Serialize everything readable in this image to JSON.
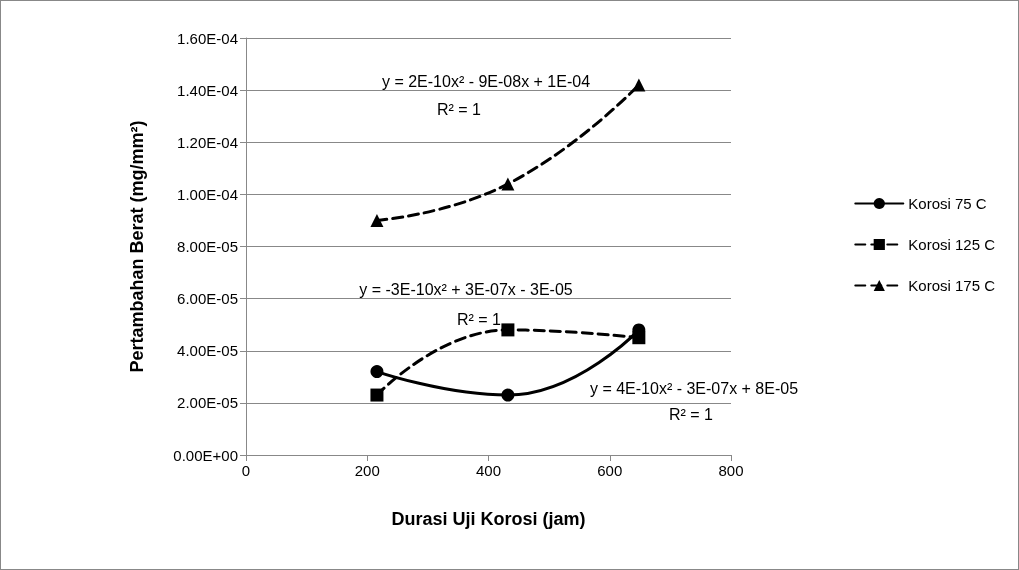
{
  "chart_data": {
    "type": "line",
    "xlabel": "Durasi Uji Korosi (jam)",
    "ylabel": "Pertambahan Berat (mg/mm²)",
    "x": [
      216,
      432,
      648
    ],
    "series": [
      {
        "name": "Korosi 75 C",
        "color": "#000000",
        "marker": "circle",
        "line_style": "solid",
        "values": [
          3.2e-05,
          2.3e-05,
          4.8e-05
        ]
      },
      {
        "name": "Korosi 125 C",
        "color": "#000000",
        "marker": "square",
        "line_style": "dashed",
        "values": [
          2.3e-05,
          4.8e-05,
          4.5e-05
        ]
      },
      {
        "name": "Korosi 175 C",
        "color": "#000000",
        "marker": "triangle",
        "line_style": "dashed",
        "values": [
          9e-05,
          0.000104,
          0.000142
        ]
      }
    ],
    "xlim": [
      0,
      800
    ],
    "xticks": [
      0,
      200,
      400,
      600,
      800
    ],
    "ylim": [
      0,
      0.00016
    ],
    "yticks": [
      {
        "value": 0,
        "label": "0.00E+00"
      },
      {
        "value": 2e-05,
        "label": "2.00E-05"
      },
      {
        "value": 4e-05,
        "label": "4.00E-05"
      },
      {
        "value": 6e-05,
        "label": "6.00E-05"
      },
      {
        "value": 8e-05,
        "label": "8.00E-05"
      },
      {
        "value": 0.0001,
        "label": "1.00E-04"
      },
      {
        "value": 0.00012,
        "label": "1.20E-04"
      },
      {
        "value": 0.00014,
        "label": "1.40E-04"
      },
      {
        "value": 0.00016,
        "label": "1.60E-04"
      }
    ],
    "grid": "y",
    "legend": "right",
    "annotations": [
      "y = 2E-10x² - 9E-08x + 1E-04",
      "R² = 1",
      "y = -3E-10x² + 3E-07x - 3E-05",
      "R² = 1",
      "y = 4E-10x² - 3E-07x + 8E-05",
      "R² = 1"
    ]
  }
}
